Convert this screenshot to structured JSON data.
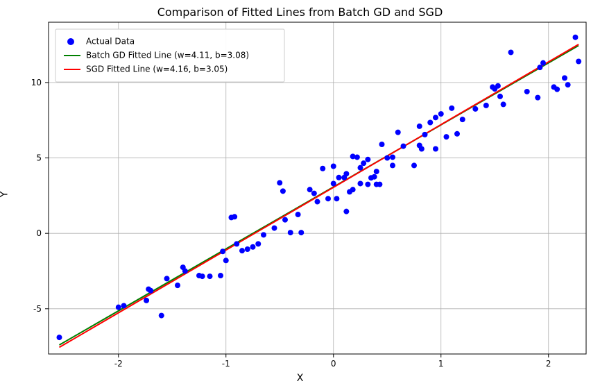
{
  "chart": {
    "type": "scatter_with_lines",
    "title": "Comparison of Fitted Lines from Batch GD and SGD",
    "title_fontsize": 16,
    "xlabel": "X",
    "ylabel": "Y",
    "label_fontsize": 14,
    "tick_fontsize": 12,
    "background_color": "#ffffff",
    "grid": true,
    "grid_color": "#b0b0b0",
    "axis_border_color": "#000000",
    "xlim": [
      -2.65,
      2.35
    ],
    "ylim": [
      -8.0,
      14.0
    ],
    "xticks": [
      -2,
      -1,
      0,
      1,
      2
    ],
    "yticks": [
      -5,
      0,
      5,
      10
    ],
    "scatter": {
      "label": "Actual Data",
      "color": "#0000ff",
      "marker": "circle",
      "size": 6,
      "points": [
        [
          -2.55,
          -6.9
        ],
        [
          -2.0,
          -4.9
        ],
        [
          -1.95,
          -4.8
        ],
        [
          -1.7,
          -3.8
        ],
        [
          -1.72,
          -3.7
        ],
        [
          -1.74,
          -4.45
        ],
        [
          -1.6,
          -5.45
        ],
        [
          -1.55,
          -3.0
        ],
        [
          -1.45,
          -3.45
        ],
        [
          -1.4,
          -2.25
        ],
        [
          -1.38,
          -2.5
        ],
        [
          -1.25,
          -2.8
        ],
        [
          -1.22,
          -2.85
        ],
        [
          -1.15,
          -2.85
        ],
        [
          -1.05,
          -2.8
        ],
        [
          -1.03,
          -1.2
        ],
        [
          -1.0,
          -1.8
        ],
        [
          -0.95,
          1.05
        ],
        [
          -0.92,
          1.1
        ],
        [
          -0.9,
          -0.7
        ],
        [
          -0.85,
          -1.15
        ],
        [
          -0.8,
          -1.05
        ],
        [
          -0.75,
          -0.9
        ],
        [
          -0.7,
          -0.7
        ],
        [
          -0.65,
          -0.1
        ],
        [
          -0.55,
          0.35
        ],
        [
          -0.5,
          3.35
        ],
        [
          -0.47,
          2.8
        ],
        [
          -0.45,
          0.9
        ],
        [
          -0.4,
          0.05
        ],
        [
          -0.33,
          1.25
        ],
        [
          -0.3,
          0.05
        ],
        [
          -0.22,
          2.9
        ],
        [
          -0.18,
          2.65
        ],
        [
          -0.15,
          2.1
        ],
        [
          -0.1,
          4.3
        ],
        [
          -0.05,
          2.3
        ],
        [
          0.0,
          3.3
        ],
        [
          0.0,
          4.45
        ],
        [
          0.03,
          2.3
        ],
        [
          0.05,
          3.7
        ],
        [
          0.1,
          3.7
        ],
        [
          0.12,
          3.95
        ],
        [
          0.12,
          1.45
        ],
        [
          0.15,
          2.75
        ],
        [
          0.18,
          2.9
        ],
        [
          0.18,
          5.1
        ],
        [
          0.22,
          5.05
        ],
        [
          0.25,
          3.3
        ],
        [
          0.25,
          4.35
        ],
        [
          0.28,
          4.65
        ],
        [
          0.32,
          4.9
        ],
        [
          0.32,
          3.25
        ],
        [
          0.35,
          3.68
        ],
        [
          0.38,
          3.75
        ],
        [
          0.4,
          4.1
        ],
        [
          0.4,
          3.25
        ],
        [
          0.43,
          3.25
        ],
        [
          0.45,
          5.9
        ],
        [
          0.5,
          5.0
        ],
        [
          0.55,
          4.5
        ],
        [
          0.55,
          5.05
        ],
        [
          0.6,
          6.7
        ],
        [
          0.65,
          5.78
        ],
        [
          0.75,
          4.5
        ],
        [
          0.8,
          5.83
        ],
        [
          0.8,
          7.1
        ],
        [
          0.82,
          5.6
        ],
        [
          0.85,
          6.55
        ],
        [
          0.9,
          7.35
        ],
        [
          0.95,
          7.68
        ],
        [
          0.95,
          5.6
        ],
        [
          1.0,
          7.92
        ],
        [
          1.05,
          6.4
        ],
        [
          1.1,
          8.3
        ],
        [
          1.15,
          6.6
        ],
        [
          1.2,
          7.55
        ],
        [
          1.32,
          8.25
        ],
        [
          1.42,
          8.48
        ],
        [
          1.48,
          9.7
        ],
        [
          1.5,
          9.58
        ],
        [
          1.53,
          9.78
        ],
        [
          1.55,
          9.08
        ],
        [
          1.58,
          8.55
        ],
        [
          1.65,
          12.0
        ],
        [
          1.8,
          9.4
        ],
        [
          1.9,
          9.0
        ],
        [
          1.92,
          11.0
        ],
        [
          1.95,
          11.3
        ],
        [
          2.05,
          9.7
        ],
        [
          2.08,
          9.55
        ],
        [
          2.15,
          10.3
        ],
        [
          2.18,
          9.85
        ],
        [
          2.25,
          13.0
        ],
        [
          2.28,
          11.4
        ]
      ]
    },
    "lines": [
      {
        "label": "Batch GD Fitted Line (w=4.11, b=3.08)",
        "color": "#008000",
        "width": 2,
        "w": 4.11,
        "b": 3.08,
        "x_from": -2.55,
        "x_to": 2.28
      },
      {
        "label": "SGD Fitted Line (w=4.16, b=3.05)",
        "color": "#ff0000",
        "width": 2,
        "w": 4.16,
        "b": 3.05,
        "x_from": -2.55,
        "x_to": 2.28
      }
    ],
    "legend": {
      "position": "upper_left",
      "frame_color": "#cccccc",
      "background": "#ffffff",
      "fontsize": 12,
      "items": [
        {
          "kind": "scatter",
          "label": "Actual Data",
          "color": "#0000ff"
        },
        {
          "kind": "line",
          "label": "Batch GD Fitted Line (w=4.11, b=3.08)",
          "color": "#008000"
        },
        {
          "kind": "line",
          "label": "SGD Fitted Line (w=4.16, b=3.05)",
          "color": "#ff0000"
        }
      ]
    }
  }
}
